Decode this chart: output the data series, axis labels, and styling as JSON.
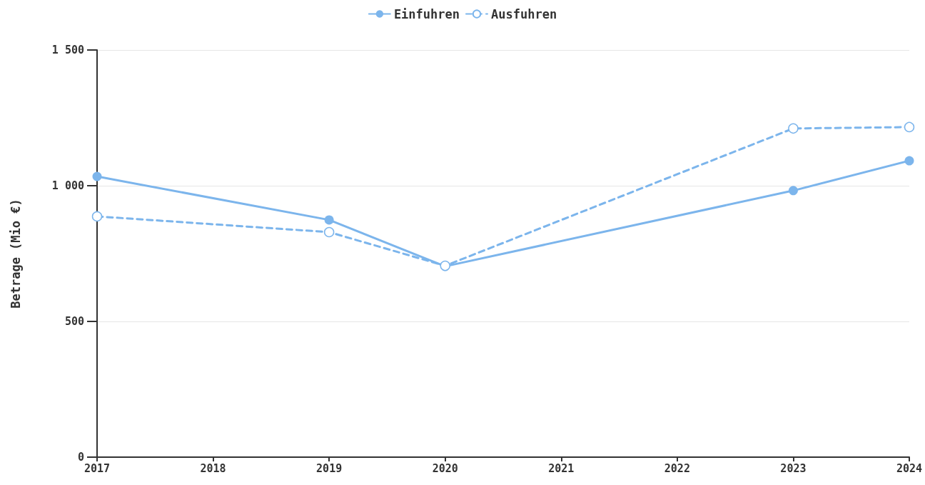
{
  "chart_data": {
    "type": "line",
    "ylabel": "Betrage (Mio €)",
    "x": [
      2017,
      2019,
      2020,
      2023,
      2024
    ],
    "series": [
      {
        "name": "Einfuhren",
        "color": "#7cb5ec",
        "values": [
          1034,
          874,
          703,
          982,
          1092
        ],
        "line_style": "solid"
      },
      {
        "name": "Ausfuhren",
        "color": "#7cb5ec",
        "values": [
          887,
          829,
          705,
          1211,
          1216
        ],
        "line_style": "dashed"
      }
    ],
    "xlim": [
      2017,
      2024
    ],
    "xticks": [
      2017,
      2018,
      2019,
      2020,
      2021,
      2022,
      2023,
      2024
    ],
    "ylim": [
      0,
      1500
    ],
    "yticks": [
      0,
      {
        "value": 500,
        "label": "500"
      },
      {
        "value": 1000,
        "label": "1 000"
      },
      {
        "value": 1500,
        "label": "1 500"
      }
    ],
    "grid": "y",
    "legend": "top",
    "marker": "circle"
  }
}
